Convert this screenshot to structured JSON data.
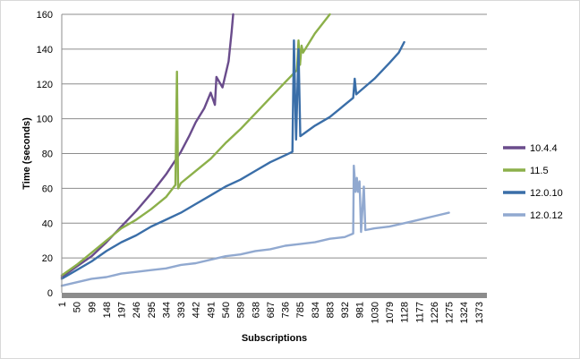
{
  "chart_data": {
    "type": "line",
    "title": "",
    "xlabel": "Subscriptions",
    "ylabel": "Time (seconds)",
    "x_ticks": [
      1,
      50,
      99,
      148,
      197,
      246,
      295,
      344,
      393,
      442,
      491,
      540,
      589,
      638,
      687,
      736,
      785,
      834,
      883,
      932,
      981,
      1030,
      1079,
      1128,
      1177,
      1226,
      1275,
      1324,
      1373
    ],
    "xlim": [
      1,
      1400
    ],
    "ylim": [
      0,
      160
    ],
    "y_ticks": [
      0,
      20,
      40,
      60,
      80,
      100,
      120,
      140,
      160
    ],
    "grid": true,
    "legend_position": "right",
    "series": [
      {
        "name": "10.4.4",
        "color": "#6a4c8c",
        "points": [
          [
            1,
            9
          ],
          [
            50,
            15
          ],
          [
            99,
            21
          ],
          [
            148,
            29
          ],
          [
            197,
            38
          ],
          [
            246,
            47
          ],
          [
            295,
            57
          ],
          [
            344,
            68
          ],
          [
            393,
            81
          ],
          [
            420,
            90
          ],
          [
            442,
            98
          ],
          [
            470,
            106
          ],
          [
            491,
            115
          ],
          [
            505,
            108
          ],
          [
            510,
            124
          ],
          [
            530,
            118
          ],
          [
            550,
            133
          ],
          [
            560,
            150
          ],
          [
            565,
            160
          ]
        ]
      },
      {
        "name": "11.5",
        "color": "#8cb04a",
        "points": [
          [
            1,
            10
          ],
          [
            50,
            16
          ],
          [
            99,
            23
          ],
          [
            148,
            30
          ],
          [
            197,
            37
          ],
          [
            246,
            42
          ],
          [
            295,
            48
          ],
          [
            344,
            55
          ],
          [
            375,
            62
          ],
          [
            380,
            127
          ],
          [
            384,
            60
          ],
          [
            393,
            63
          ],
          [
            442,
            70
          ],
          [
            491,
            77
          ],
          [
            540,
            86
          ],
          [
            589,
            94
          ],
          [
            638,
            103
          ],
          [
            687,
            112
          ],
          [
            736,
            121
          ],
          [
            775,
            128
          ],
          [
            780,
            145
          ],
          [
            785,
            131
          ],
          [
            790,
            142
          ],
          [
            795,
            138
          ],
          [
            834,
            149
          ],
          [
            883,
            160
          ]
        ]
      },
      {
        "name": "12.0.10",
        "color": "#3a6ea8",
        "points": [
          [
            1,
            8
          ],
          [
            50,
            13
          ],
          [
            99,
            18
          ],
          [
            148,
            24
          ],
          [
            197,
            29
          ],
          [
            246,
            33
          ],
          [
            295,
            38
          ],
          [
            344,
            42
          ],
          [
            393,
            46
          ],
          [
            442,
            51
          ],
          [
            491,
            56
          ],
          [
            540,
            61
          ],
          [
            589,
            65
          ],
          [
            638,
            70
          ],
          [
            687,
            75
          ],
          [
            736,
            79
          ],
          [
            760,
            81
          ],
          [
            765,
            145
          ],
          [
            772,
            88
          ],
          [
            780,
            140
          ],
          [
            786,
            90
          ],
          [
            834,
            96
          ],
          [
            883,
            101
          ],
          [
            932,
            108
          ],
          [
            960,
            112
          ],
          [
            965,
            123
          ],
          [
            970,
            114
          ],
          [
            1030,
            123
          ],
          [
            1079,
            132
          ],
          [
            1110,
            138
          ],
          [
            1128,
            144
          ]
        ]
      },
      {
        "name": "12.0.12",
        "color": "#91a9d0",
        "points": [
          [
            1,
            4
          ],
          [
            50,
            6
          ],
          [
            99,
            8
          ],
          [
            148,
            9
          ],
          [
            197,
            11
          ],
          [
            246,
            12
          ],
          [
            295,
            13
          ],
          [
            344,
            14
          ],
          [
            393,
            16
          ],
          [
            442,
            17
          ],
          [
            491,
            19
          ],
          [
            540,
            21
          ],
          [
            589,
            22
          ],
          [
            638,
            24
          ],
          [
            687,
            25
          ],
          [
            736,
            27
          ],
          [
            785,
            28
          ],
          [
            834,
            29
          ],
          [
            883,
            31
          ],
          [
            932,
            32
          ],
          [
            960,
            34
          ],
          [
            962,
            73
          ],
          [
            968,
            58
          ],
          [
            972,
            66
          ],
          [
            976,
            58
          ],
          [
            981,
            64
          ],
          [
            986,
            35
          ],
          [
            995,
            61
          ],
          [
            1000,
            36
          ],
          [
            1030,
            37
          ],
          [
            1079,
            38
          ],
          [
            1128,
            40
          ],
          [
            1177,
            42
          ],
          [
            1226,
            44
          ],
          [
            1275,
            46
          ]
        ]
      }
    ]
  }
}
